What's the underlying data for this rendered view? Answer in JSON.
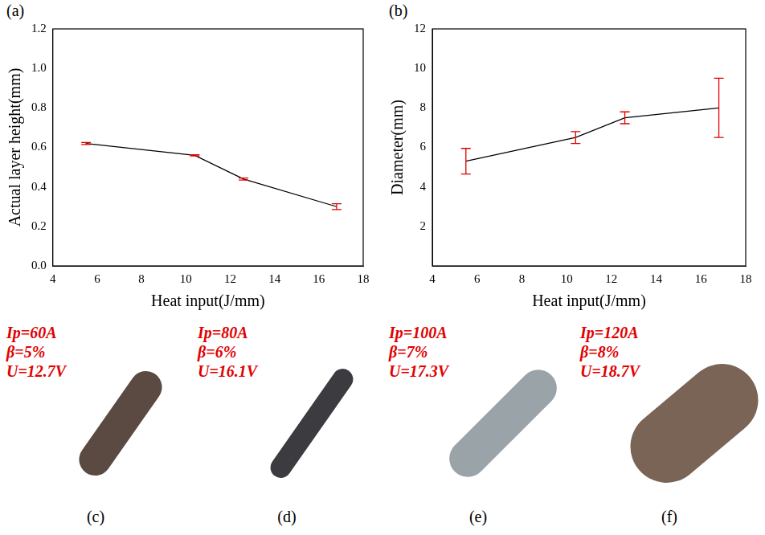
{
  "chart_data": [
    {
      "type": "line",
      "panel": "(a)",
      "x_label": "Heat input(J/mm)",
      "y_label": "Actual layer height(mm)",
      "x": [
        5.5,
        10.4,
        12.6,
        16.8
      ],
      "values": [
        0.62,
        0.56,
        0.44,
        0.3
      ],
      "errors": [
        0.005,
        0.003,
        0.005,
        0.015
      ],
      "color": "#000000",
      "xlim": [
        4,
        18
      ],
      "xticks": [
        4,
        6,
        8,
        10,
        12,
        14,
        16,
        18
      ],
      "ylim": [
        0,
        1.2
      ],
      "yticks": [
        {
          "value": 0,
          "label": "0.0"
        },
        0.2,
        0.4,
        0.6,
        0.8,
        {
          "value": 1,
          "label": "1.0"
        },
        1.2
      ],
      "grid": false
    },
    {
      "type": "line",
      "panel": "(b)",
      "x_label": "Heat input(J/mm)",
      "y_label": "Diameter(mm)",
      "x": [
        5.5,
        10.4,
        12.6,
        16.8
      ],
      "values": [
        5.3,
        6.5,
        7.5,
        8.0
      ],
      "errors": [
        0.65,
        0.3,
        0.3,
        1.5
      ],
      "color": "#000000",
      "xlim": [
        4,
        18
      ],
      "xticks": [
        4,
        6,
        8,
        10,
        12,
        14,
        16,
        18
      ],
      "ylim": [
        0,
        12
      ],
      "yticks": [
        2,
        4,
        6,
        8,
        10,
        12
      ],
      "grid": false
    }
  ],
  "photos": [
    {
      "panel": "(c)",
      "lines": [
        "Ip=60A",
        "β=5%",
        "U=12.7V"
      ]
    },
    {
      "panel": "(d)",
      "lines": [
        "Ip=80A",
        "β=6%",
        "U=16.1V"
      ]
    },
    {
      "panel": "(e)",
      "lines": [
        "Ip=100A",
        "β=7%",
        "U=17.3V"
      ]
    },
    {
      "panel": "(f)",
      "lines": [
        "Ip=120A",
        "β=8%",
        "U=18.7V"
      ]
    }
  ]
}
